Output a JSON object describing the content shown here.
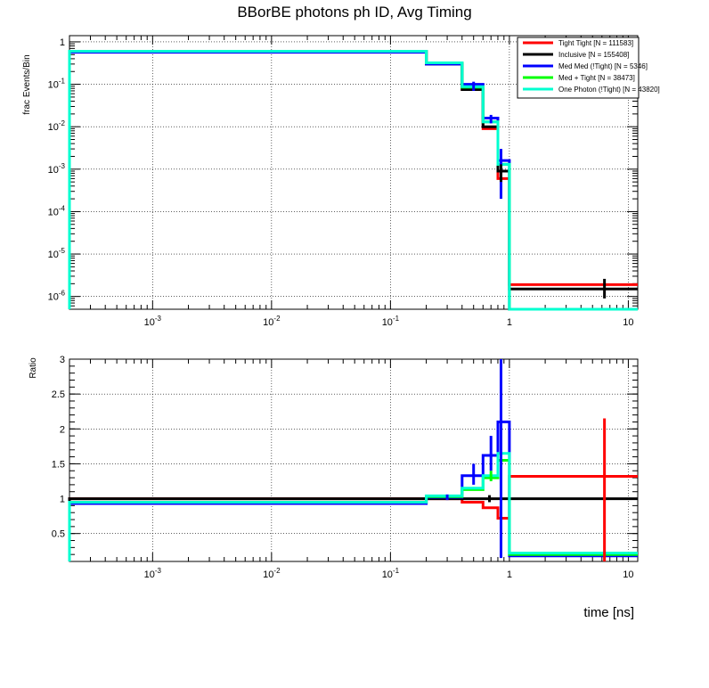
{
  "chart_data": {
    "title": "BBorBE photons ph ID, Avg Timing",
    "type": "line",
    "xlabel": "time [ns]",
    "xscale": "log",
    "xlim": [
      0.0002,
      12
    ],
    "legend_position": "top-right",
    "grid": true,
    "colors": {
      "Tight Tight [N = 111583]": "#ff0000",
      "Inclusive [N = 155408]": "#000000",
      "Med Med (!Tight) [N = 5346]": "#0000ff",
      "Med + Tight [N = 38473]": "#00ff00",
      "One Photon (!Tight) [N = 43820]": "#00ffd0"
    },
    "bin_edges": [
      0.0002,
      0.2,
      0.4,
      0.6,
      0.8,
      1.0,
      12
    ],
    "top_panel": {
      "ylabel": "frac Events/Bin",
      "yscale": "log",
      "ylim": [
        5e-07,
        1.4
      ],
      "yticks": [
        {
          "base": "10",
          "exp": "-6"
        },
        {
          "base": "10",
          "exp": "-5"
        },
        {
          "base": "10",
          "exp": "-4"
        },
        {
          "base": "10",
          "exp": "-3"
        },
        {
          "base": "10",
          "exp": "-2"
        },
        {
          "base": "10",
          "exp": "-1"
        },
        {
          "base": "1",
          "exp": ""
        }
      ],
      "series": [
        {
          "name": "Tight Tight [N = 111583]",
          "values": [
            0.6,
            0.3,
            0.075,
            0.009,
            0.0006,
            1.9e-06
          ]
        },
        {
          "name": "Inclusive [N = 155408]",
          "values": [
            0.6,
            0.3,
            0.075,
            0.01,
            0.0009,
            1.5e-06
          ]
        },
        {
          "name": "Med Med (!Tight) [N = 5346]",
          "values": [
            0.57,
            0.3,
            0.1,
            0.016,
            0.0016,
            3e-07
          ]
        },
        {
          "name": "Med + Tight [N = 38473]",
          "values": [
            0.6,
            0.32,
            0.085,
            0.013,
            0.0013,
            3e-07
          ]
        },
        {
          "name": "One Photon (!Tight) [N = 43820]",
          "values": [
            0.6,
            0.32,
            0.088,
            0.013,
            0.0013,
            3e-07
          ]
        }
      ]
    },
    "bottom_panel": {
      "ylabel": "Ratio",
      "ylim": [
        0.1,
        3.0
      ],
      "yticks": [
        "0.5",
        "1",
        "1.5",
        "2",
        "2.5",
        "3"
      ],
      "series": [
        {
          "name": "Tight Tight [N = 111583]",
          "values": [
            1.0,
            1.0,
            0.95,
            0.87,
            0.72,
            1.32
          ]
        },
        {
          "name": "Inclusive [N = 155408]",
          "values": [
            1.0,
            1.0,
            1.0,
            1.0,
            1.0,
            1.0
          ]
        },
        {
          "name": "Med Med (!Tight) [N = 5346]",
          "values": [
            0.93,
            1.02,
            1.33,
            1.62,
            2.1,
            0.18
          ]
        },
        {
          "name": "Med + Tight [N = 38473]",
          "values": [
            0.95,
            1.03,
            1.13,
            1.3,
            1.55,
            0.2
          ]
        },
        {
          "name": "One Photon (!Tight) [N = 43820]",
          "values": [
            0.95,
            1.04,
            1.15,
            1.33,
            1.65,
            0.22
          ]
        }
      ]
    },
    "xticks": [
      {
        "base": "10",
        "exp": "-3"
      },
      {
        "base": "10",
        "exp": "-2"
      },
      {
        "base": "10",
        "exp": "-1"
      },
      {
        "base": "1",
        "exp": ""
      },
      {
        "base": "10",
        "exp": ""
      }
    ]
  }
}
